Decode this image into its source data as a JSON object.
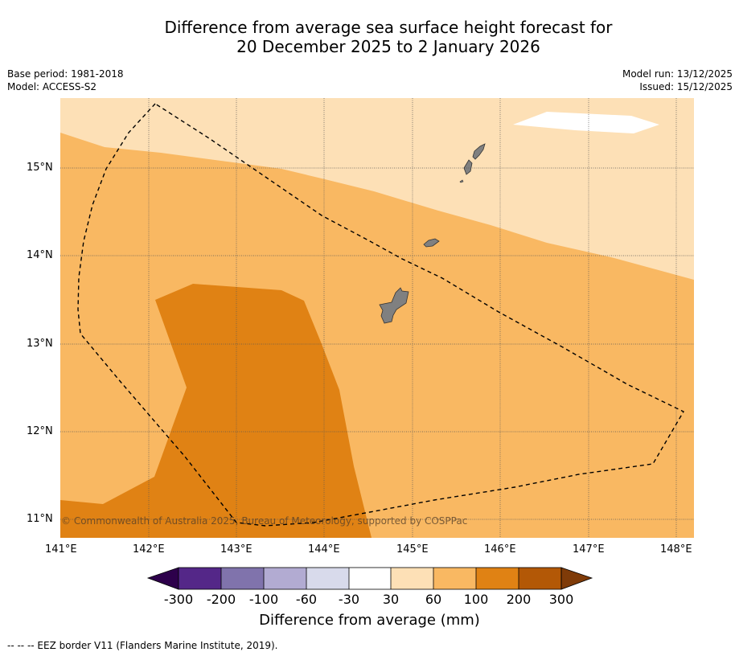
{
  "header": {
    "title_line1": "Difference from average sea surface height forecast for",
    "title_line2": "20 December 2025 to 2 January 2026",
    "base_period": "Base period: 1981-2018",
    "model": "Model: ACCESS-S2",
    "model_run": "Model run: 13/12/2025",
    "issued": "Issued: 15/12/2025"
  },
  "map": {
    "lon_labels": [
      "141°E",
      "142°E",
      "143°E",
      "144°E",
      "145°E",
      "146°E",
      "147°E",
      "148°E"
    ],
    "lat_labels": [
      "15°N",
      "14°N",
      "13°N",
      "12°N",
      "11°N"
    ],
    "copyright": "© Commonwealth of Australia 2025, Bureau of Meteorology, supported by COSPPac",
    "colors": {
      "band_30_60": "#fde0b6",
      "band_60_100": "#f9b862",
      "band_100_200": "#e08214",
      "land": "#808080",
      "eez_line": "#000000"
    }
  },
  "colorbar": {
    "labels": [
      "-300",
      "-200",
      "-100",
      "-60",
      "-30",
      "30",
      "60",
      "100",
      "200",
      "300"
    ],
    "colors": [
      "#2d004b",
      "#542788",
      "#8073ac",
      "#b2abd2",
      "#d8daeb",
      "#ffffff",
      "#fde0b6",
      "#f9b862",
      "#e08214",
      "#b35806",
      "#7f3b08"
    ],
    "title": "Difference from average (mm)"
  },
  "footnote": "--  --  -- EEZ border V11 (Flanders Marine Institute, 2019)."
}
